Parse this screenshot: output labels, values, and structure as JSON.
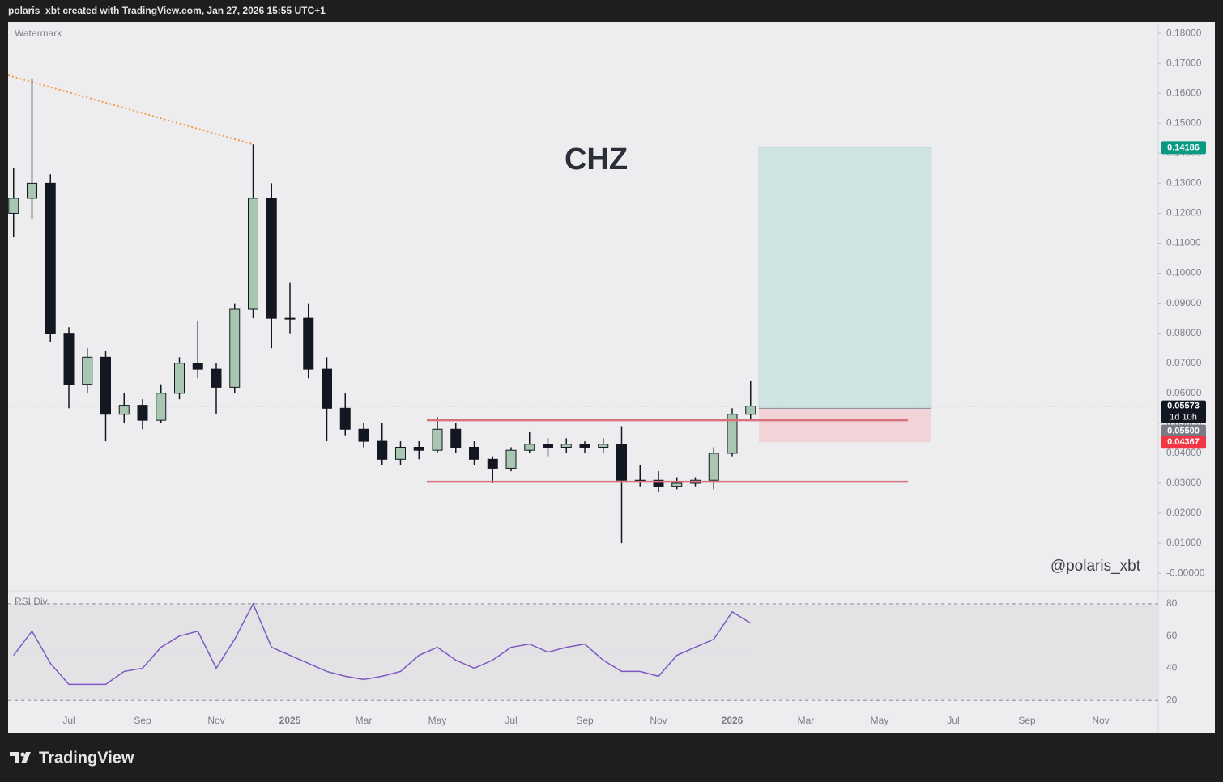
{
  "header": "polaris_xbt created with TradingView.com, Jan 27, 2026 15:55 UTC+1",
  "footer_brand": "TradingView",
  "chart_data": {
    "type": "candlestick",
    "title": "CHZ",
    "watermark": "Watermark",
    "signature": "@polaris_xbt",
    "categories": [
      null,
      null,
      null,
      "Jul",
      null,
      null,
      null,
      "Sep",
      null,
      null,
      null,
      "Nov",
      null,
      null,
      null,
      "2025",
      null,
      null,
      null,
      "Mar",
      null,
      null,
      null,
      "May",
      null,
      null,
      null,
      "Jul",
      null,
      null,
      null,
      "Sep",
      null,
      null,
      null,
      "Nov",
      null,
      null,
      null,
      "2026",
      null,
      null,
      null,
      "Mar",
      null,
      null,
      null,
      "May",
      null,
      null,
      null,
      "Jul",
      null,
      null,
      null,
      "Sep",
      null,
      null,
      null,
      "Nov",
      null,
      null,
      null
    ],
    "open": [
      0.12,
      0.125,
      0.13,
      0.08,
      0.063,
      0.072,
      0.053,
      0.056,
      0.051,
      0.06,
      0.07,
      0.068,
      0.062,
      0.088,
      0.125,
      0.085,
      0.085,
      0.068,
      0.055,
      0.048,
      0.044,
      0.038,
      0.042,
      0.041,
      0.048,
      0.042,
      0.038,
      0.035,
      0.041,
      0.043,
      0.042,
      0.043,
      0.042,
      0.043,
      0.031,
      0.031,
      0.029,
      0.03,
      0.031,
      0.04,
      0.053,
      null,
      null,
      null,
      null,
      null,
      null,
      null,
      null,
      null,
      null,
      null,
      null,
      null,
      null,
      null,
      null,
      null,
      null,
      null,
      null,
      null,
      null
    ],
    "high": [
      0.135,
      0.165,
      0.133,
      0.082,
      0.075,
      0.074,
      0.06,
      0.058,
      0.063,
      0.072,
      0.084,
      0.07,
      0.09,
      0.143,
      0.13,
      0.097,
      0.09,
      0.072,
      0.06,
      0.05,
      0.05,
      0.044,
      0.044,
      0.052,
      0.05,
      0.044,
      0.039,
      0.042,
      0.047,
      0.045,
      0.045,
      0.044,
      0.045,
      0.049,
      0.036,
      0.034,
      0.032,
      0.032,
      0.042,
      0.055,
      0.064,
      null,
      null,
      null,
      null,
      null,
      null,
      null,
      null,
      null,
      null,
      null,
      null,
      null,
      null,
      null,
      null,
      null,
      null,
      null,
      null,
      null,
      null
    ],
    "low": [
      0.112,
      0.118,
      0.077,
      0.055,
      0.06,
      0.044,
      0.05,
      0.048,
      0.05,
      0.058,
      0.065,
      0.053,
      0.06,
      0.085,
      0.075,
      0.08,
      0.065,
      0.044,
      0.046,
      0.042,
      0.036,
      0.036,
      0.038,
      0.04,
      0.04,
      0.036,
      0.03,
      0.034,
      0.04,
      0.039,
      0.04,
      0.04,
      0.04,
      0.01,
      0.029,
      0.027,
      0.028,
      0.029,
      0.028,
      0.039,
      0.051,
      null,
      null,
      null,
      null,
      null,
      null,
      null,
      null,
      null,
      null,
      null,
      null,
      null,
      null,
      null,
      null,
      null,
      null,
      null,
      null,
      null,
      null
    ],
    "close": [
      0.125,
      0.13,
      0.08,
      0.063,
      0.072,
      0.053,
      0.056,
      0.051,
      0.06,
      0.07,
      0.068,
      0.062,
      0.088,
      0.125,
      0.085,
      0.085,
      0.068,
      0.055,
      0.048,
      0.044,
      0.038,
      0.042,
      0.041,
      0.048,
      0.042,
      0.038,
      0.035,
      0.041,
      0.043,
      0.042,
      0.043,
      0.042,
      0.043,
      0.031,
      0.031,
      0.029,
      0.03,
      0.031,
      0.04,
      0.053,
      0.05573,
      null,
      null,
      null,
      null,
      null,
      null,
      null,
      null,
      null,
      null,
      null,
      null,
      null,
      null,
      null,
      null,
      null,
      null,
      null,
      null,
      null,
      null
    ],
    "up_color": "#a9c7b0",
    "down_color": "#131722",
    "ylim": [
      -0.0059,
      0.1838
    ],
    "yticks": [
      {
        "value": 0.18,
        "label": "0.18000"
      },
      {
        "value": 0.17,
        "label": "0.17000"
      },
      {
        "value": 0.16,
        "label": "0.16000"
      },
      {
        "value": 0.15,
        "label": "0.15000"
      },
      {
        "value": 0.14,
        "label": "0.14000"
      },
      {
        "value": 0.13,
        "label": "0.13000"
      },
      {
        "value": 0.12,
        "label": "0.12000"
      },
      {
        "value": 0.11,
        "label": "0.11000"
      },
      {
        "value": 0.1,
        "label": "0.10000"
      },
      {
        "value": 0.09,
        "label": "0.09000"
      },
      {
        "value": 0.08,
        "label": "0.08000"
      },
      {
        "value": 0.07,
        "label": "0.07000"
      },
      {
        "value": 0.06,
        "label": "0.06000"
      },
      {
        "value": 0.05,
        "label": "0.05000"
      },
      {
        "value": 0.04,
        "label": "0.04000"
      },
      {
        "value": 0.03,
        "label": "0.03000"
      },
      {
        "value": 0.02,
        "label": "0.02000"
      },
      {
        "value": 0.01,
        "label": "0.01000"
      },
      {
        "value": 0,
        "label": "-0.00000"
      }
    ],
    "levels": [
      0.051,
      0.0305
    ],
    "level_color": "#d9737b",
    "trendline": {
      "values": [
        0.166,
        0.143
      ],
      "color": "#f59a42"
    },
    "position": {
      "entry": 0.055,
      "entry_label": "0.05500",
      "target": 0.14186,
      "stop": 0.04367
    },
    "last_price_countdown": "1d 10h",
    "indicator": {
      "type": "line",
      "name": "RSI Div",
      "color": "#7e57c2",
      "values": [
        48,
        63,
        43,
        30,
        30,
        30,
        38,
        40,
        53,
        60,
        63,
        40,
        58,
        80,
        53,
        48,
        43,
        38,
        35,
        33,
        35,
        38,
        48,
        53,
        45,
        40,
        45,
        53,
        55,
        50,
        53,
        55,
        45,
        38,
        38,
        35,
        48,
        53,
        58,
        75,
        68,
        null,
        null,
        null,
        null,
        null,
        null,
        null,
        null,
        null,
        null,
        null,
        null,
        null,
        null,
        null,
        null,
        null,
        null,
        null,
        null,
        null,
        null
      ],
      "ylim": [
        0,
        88
      ],
      "yticks": [
        20,
        40,
        60,
        80
      ],
      "bands": [
        20,
        80
      ],
      "midline": 50
    }
  }
}
